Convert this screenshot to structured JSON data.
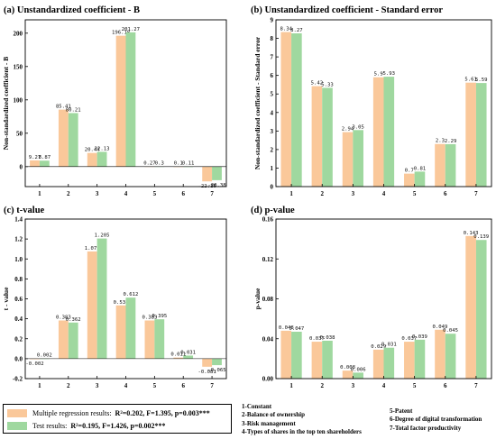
{
  "colors": {
    "orange": "#fac89a",
    "green": "#9fd89f"
  },
  "chart_data": [
    {
      "type": "bar",
      "title": "(a) Unstandardized coefficient - B",
      "ylabel": "Non-standardized coefficient - B",
      "categories": [
        "1",
        "2",
        "3",
        "4",
        "5",
        "6",
        "7"
      ],
      "ylim": [
        -30,
        220
      ],
      "yticks": [
        0,
        50,
        100,
        150,
        200
      ],
      "series": [
        {
          "values": [
            9.27,
            85.41,
            20.44,
            196.18,
            0.27,
            0.1,
            -22.16
          ],
          "labels": [
            "9.27",
            "85.41",
            "20.44",
            "196.18",
            "0.27",
            "0.1",
            "-22.16"
          ]
        },
        {
          "values": [
            8.87,
            80.21,
            22.13,
            201.27,
            0.3,
            0.11,
            -20.38
          ],
          "labels": [
            "8.87",
            "80.21",
            "22.13",
            "201.27",
            "0.3",
            "0.11",
            "-20.38"
          ]
        }
      ]
    },
    {
      "type": "bar",
      "title": "(b) Unstandardized coefficient - Standard error",
      "ylabel": "Non-standardized coefficient - Standard error",
      "categories": [
        "1",
        "2",
        "3",
        "4",
        "5",
        "6",
        "7"
      ],
      "ylim": [
        0,
        9
      ],
      "yticks": [
        0,
        1,
        2,
        3,
        4,
        5,
        6,
        7,
        8,
        9
      ],
      "series": [
        {
          "values": [
            8.34,
            5.42,
            2.94,
            5.9,
            0.7,
            2.3,
            5.61
          ],
          "labels": [
            "8.34",
            "5.42",
            "2.94",
            "5.9",
            "0.7",
            "2.3",
            "5.61"
          ]
        },
        {
          "values": [
            8.27,
            5.33,
            3.05,
            5.93,
            0.81,
            2.29,
            5.59
          ],
          "labels": [
            "8.27",
            "5.33",
            "3.05",
            "5.93",
            "0.81",
            "2.29",
            "5.59"
          ]
        }
      ]
    },
    {
      "type": "bar",
      "title": "(c) t-value",
      "ylabel": "t - value",
      "categories": [
        "1",
        "2",
        "3",
        "4",
        "5",
        "6",
        "7"
      ],
      "ylim": [
        -0.2,
        1.4
      ],
      "yticks": [
        -0.2,
        0.0,
        0.2,
        0.4,
        0.6,
        0.8,
        1.0,
        1.2,
        1.4
      ],
      "ytick_labels": [
        "-0.2",
        "0.0",
        "0.2",
        "0.4",
        "0.6",
        "0.8",
        "1.0",
        "1.2",
        "1.4"
      ],
      "series": [
        {
          "values": [
            -0.002,
            0.383,
            1.075,
            0.534,
            0.383,
            0.011,
            -0.081
          ],
          "labels": [
            "-0.002",
            "0.383",
            "1.075",
            "0.534",
            "0.383",
            "0.011",
            "-0.081"
          ]
        },
        {
          "values": [
            0.002,
            0.362,
            1.205,
            0.612,
            0.395,
            0.031,
            -0.065
          ],
          "labels": [
            "0.002",
            "0.362",
            "1.205",
            "0.612",
            "0.395",
            "0.031",
            "-0.065"
          ]
        }
      ]
    },
    {
      "type": "bar",
      "title": "(d) p-value",
      "ylabel": "p-value",
      "categories": [
        "1",
        "2",
        "3",
        "4",
        "5",
        "6",
        "7"
      ],
      "ylim": [
        0,
        0.16
      ],
      "yticks": [
        0.0,
        0.04,
        0.08,
        0.12,
        0.16
      ],
      "ytick_labels": [
        "0.00",
        "0.04",
        "0.08",
        "0.12",
        "0.16"
      ],
      "series": [
        {
          "values": [
            0.048,
            0.037,
            0.008,
            0.029,
            0.037,
            0.049,
            0.143
          ],
          "labels": [
            "0.048",
            "0.037",
            "0.008",
            "0.029",
            "0.037",
            "0.049",
            "0.143"
          ]
        },
        {
          "values": [
            0.047,
            0.038,
            0.006,
            0.031,
            0.039,
            0.045,
            0.139
          ],
          "labels": [
            "0.047",
            "0.038",
            "0.006",
            "0.031",
            "0.039",
            "0.045",
            "0.139"
          ]
        }
      ]
    }
  ],
  "legend": [
    {
      "label": "Multiple regression results:",
      "stat": "R²=0.202, F=1.395, p=0.003***"
    },
    {
      "label": "Test results:",
      "stat": "R²=0.195, F=1.426, p=0.002***"
    }
  ],
  "notes": {
    "col1": [
      "1-Constant",
      "2-Balance of ownership",
      "3-Risk management",
      "4-Types of shares in the top ten shareholders"
    ],
    "col2": [
      "5-Patent",
      "6-Degree of digital transformation",
      "7-Total factor productivity"
    ]
  }
}
